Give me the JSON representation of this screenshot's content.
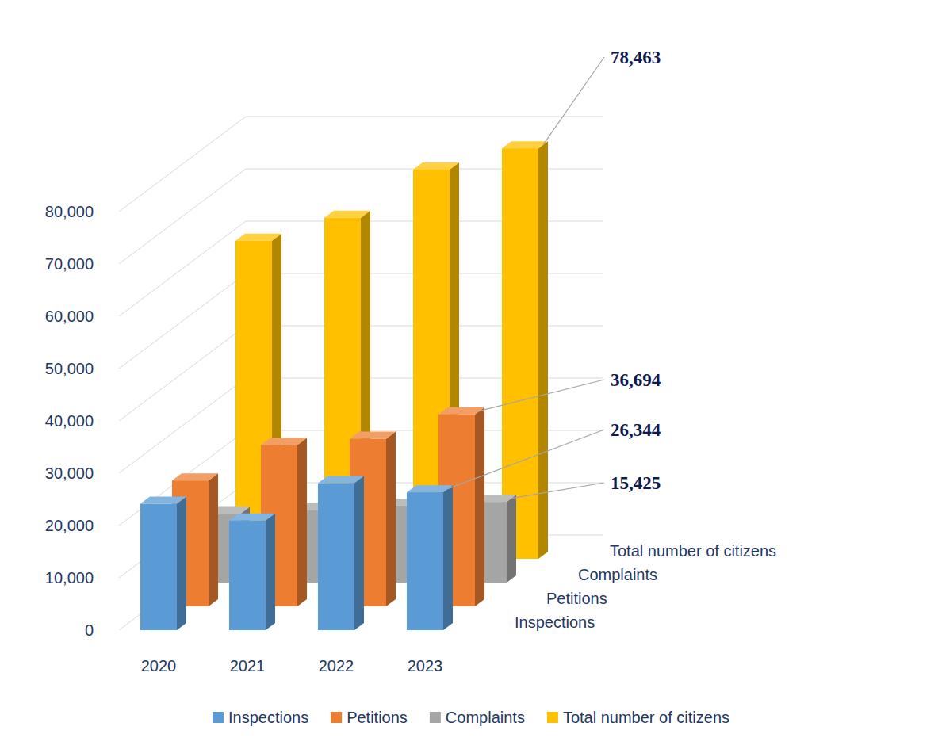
{
  "chart_data": {
    "type": "bar",
    "categories": [
      "2020",
      "2021",
      "2022",
      "2023"
    ],
    "series": [
      {
        "name": "Inspections",
        "color": "#5b9bd5",
        "values": [
          24150,
          20930,
          28100,
          26344
        ],
        "value_labels": [
          null,
          null,
          null,
          "26,344"
        ]
      },
      {
        "name": "Petitions",
        "color": "#ed7d31",
        "values": [
          24060,
          30830,
          32030,
          36694
        ],
        "value_labels": [
          null,
          null,
          null,
          "36,694"
        ]
      },
      {
        "name": "Complaints",
        "color": "#a5a5a5",
        "values": [
          13100,
          13900,
          14650,
          15425
        ],
        "value_labels": [
          null,
          null,
          null,
          "15,425"
        ]
      },
      {
        "name": "Total number of citizens",
        "color": "#ffc000",
        "values": [
          60800,
          65200,
          74400,
          78463
        ],
        "value_labels": [
          null,
          null,
          null,
          "78,463"
        ]
      }
    ],
    "ylim": [
      0,
      80000
    ],
    "yticks": [
      0,
      {
        "value": 10000,
        "label": "10,000"
      },
      {
        "value": 20000,
        "label": "20,000"
      },
      {
        "value": 30000,
        "label": "30,000"
      },
      {
        "value": 40000,
        "label": "40,000"
      },
      {
        "value": 50000,
        "label": "50,000"
      },
      {
        "value": 60000,
        "label": "60,000"
      },
      {
        "value": 70000,
        "label": "70,000"
      },
      {
        "value": 80000,
        "label": "80,000"
      }
    ],
    "grid": true,
    "legend": "bottom",
    "data_labels": true
  }
}
